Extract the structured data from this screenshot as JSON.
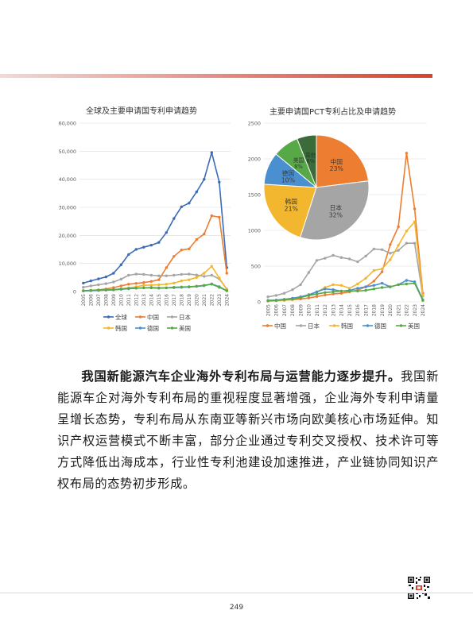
{
  "page_number": "249",
  "paragraph": {
    "lead": "我国新能源汽车企业海外专利布局与运营能力逐步提升。",
    "body": "我国新能源车企对海外专利布局的重视程度显著增强，企业海外专利申请量呈增长态势，专利布局从东南亚等新兴市场向欧美核心市场延伸。知识产权运营模式不断丰富，部分企业通过专利交叉授权、技术许可等方式降低出海成本，行业性专利池建设加速推进，产业链协同知识产权布局的态势初步形成。"
  },
  "chart_data": [
    {
      "type": "line",
      "title": "全球及主要申请国专利申请趋势",
      "categories": [
        "2005",
        "2006",
        "2007",
        "2008",
        "2009",
        "2010",
        "2011",
        "2012",
        "2013",
        "2014",
        "2015",
        "2016",
        "2017",
        "2018",
        "2019",
        "2020",
        "2021",
        "2022",
        "2023",
        "2024"
      ],
      "ylim": [
        0,
        60000
      ],
      "yticks": [
        "0",
        "10,000",
        "20,000",
        "30,000",
        "40,000",
        "50,000",
        "60,000"
      ],
      "legend_position": "bottom",
      "series": [
        {
          "name": "全球",
          "color": "#3b6bb5",
          "values": [
            3000,
            3800,
            4500,
            5200,
            6500,
            9500,
            13200,
            15000,
            15800,
            16500,
            17500,
            21000,
            26000,
            30200,
            31500,
            35500,
            40000,
            49500,
            39000,
            8500
          ]
        },
        {
          "name": "中国",
          "color": "#ed7d31",
          "values": [
            300,
            400,
            600,
            900,
            1400,
            2000,
            2600,
            2900,
            3200,
            3600,
            4200,
            8500,
            12500,
            14800,
            15200,
            18500,
            20500,
            27000,
            26500,
            6500
          ]
        },
        {
          "name": "日本",
          "color": "#a5a5a5",
          "values": [
            1500,
            2000,
            2400,
            2800,
            3400,
            4400,
            5800,
            6200,
            6100,
            5800,
            5600,
            5600,
            5800,
            6100,
            6200,
            5900,
            5400,
            5800,
            4500,
            900
          ]
        },
        {
          "name": "韩国",
          "color": "#f2b72e",
          "values": [
            200,
            300,
            400,
            500,
            600,
            900,
            1300,
            1700,
            2200,
            2300,
            2400,
            2600,
            3000,
            3800,
            4200,
            5000,
            6500,
            9000,
            4800,
            700
          ]
        },
        {
          "name": "德国",
          "color": "#4a8fd0",
          "values": [
            200,
            300,
            400,
            500,
            600,
            800,
            1000,
            1200,
            1300,
            1300,
            1200,
            1300,
            1400,
            1500,
            1600,
            1800,
            2100,
            2700,
            1700,
            300
          ]
        },
        {
          "name": "美国",
          "color": "#57a846",
          "values": [
            300,
            400,
            500,
            600,
            700,
            900,
            1100,
            1200,
            1300,
            1400,
            1300,
            1300,
            1500,
            1600,
            1700,
            1900,
            2200,
            2600,
            1500,
            250
          ]
        }
      ]
    },
    {
      "type": "line",
      "title": "主要申请国PCT专利占比及申请趋势",
      "categories": [
        "2005",
        "2006",
        "2007",
        "2008",
        "2009",
        "2010",
        "2011",
        "2012",
        "2013",
        "2014",
        "2015",
        "2016",
        "2017",
        "2018",
        "2019",
        "2020",
        "2021",
        "2022",
        "2023",
        "2024"
      ],
      "ylim": [
        0,
        2500
      ],
      "yticks": [
        "0",
        "500",
        "1000",
        "1500",
        "2000",
        "2500"
      ],
      "legend_position": "bottom",
      "series": [
        {
          "name": "中国",
          "color": "#ed7d31",
          "values": [
            15,
            20,
            25,
            30,
            40,
            55,
            75,
            95,
            110,
            120,
            140,
            165,
            210,
            290,
            420,
            800,
            1050,
            2080,
            1300,
            120
          ]
        },
        {
          "name": "日本",
          "color": "#a5a5a5",
          "values": [
            70,
            90,
            120,
            170,
            240,
            410,
            580,
            610,
            650,
            620,
            600,
            560,
            640,
            740,
            730,
            680,
            720,
            820,
            820,
            80
          ]
        },
        {
          "name": "韩国",
          "color": "#f2b72e",
          "values": [
            10,
            15,
            20,
            35,
            60,
            90,
            140,
            200,
            240,
            230,
            190,
            250,
            330,
            440,
            460,
            590,
            790,
            990,
            1120,
            90
          ]
        },
        {
          "name": "德国",
          "color": "#4a8fd0",
          "values": [
            20,
            25,
            35,
            50,
            70,
            100,
            140,
            180,
            170,
            150,
            160,
            190,
            210,
            230,
            260,
            210,
            240,
            300,
            280,
            30
          ]
        },
        {
          "name": "美国",
          "color": "#57a846",
          "values": [
            15,
            20,
            30,
            40,
            60,
            90,
            110,
            130,
            140,
            150,
            150,
            150,
            160,
            180,
            200,
            210,
            240,
            250,
            260,
            20
          ]
        }
      ],
      "pie": {
        "slices": [
          {
            "name": "中国",
            "percent": "23%",
            "value": 23,
            "color": "#ed7d31"
          },
          {
            "name": "日本",
            "percent": "32%",
            "value": 32,
            "color": "#a5a5a5"
          },
          {
            "name": "韩国",
            "percent": "21%",
            "value": 21,
            "color": "#f2b72e"
          },
          {
            "name": "德国",
            "percent": "10%",
            "value": 10,
            "color": "#4a8fd0"
          },
          {
            "name": "美国",
            "percent": "8%",
            "value": 8,
            "color": "#57a846"
          },
          {
            "name": "其他",
            "percent": "6%",
            "value": 6,
            "color": "#3b6b3b"
          }
        ]
      }
    }
  ]
}
